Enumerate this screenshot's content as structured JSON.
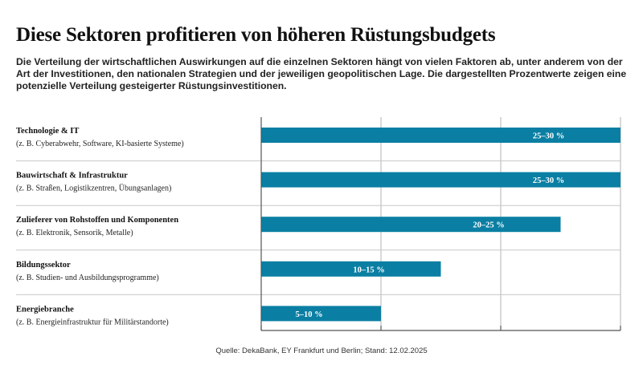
{
  "header": {
    "title": "Diese Sektoren profitieren von höheren Rüstungsbudgets",
    "subtitle": "Die Verteilung der wirtschaftlichen Auswirkungen auf die einzelnen Sektoren hängt von vielen Faktoren ab, unter anderem von der Art der Investitionen, den nationalen Strategien und der jeweiligen geopolitischen Lage. Die dargestellten Prozentwerte zeigen eine potenzielle Verteilung gesteigerter Rüstungsinvestitionen."
  },
  "colors": {
    "bar": "#0a7fa3",
    "grid": "#b3b3b3",
    "axis": "#555555",
    "separator": "#c8c8c8"
  },
  "chart_data": {
    "type": "bar",
    "orientation": "horizontal",
    "unit": "%",
    "xlim": [
      0,
      30
    ],
    "grid": true,
    "categories": [
      {
        "name": "Technologie & IT",
        "examples": "(z. B. Cyberabwehr, Software, KI-basierte Systeme)",
        "low": 25,
        "high": 30,
        "label": "25–30 %"
      },
      {
        "name": "Bauwirtschaft & Infrastruktur",
        "examples": "(z. B. Straßen, Logistikzentren, Übungsanlagen)",
        "low": 25,
        "high": 30,
        "label": "25–30 %"
      },
      {
        "name": "Zulieferer von Rohstoffen und Komponenten",
        "examples": "(z. B. Elektronik, Sensorik, Metalle)",
        "low": 20,
        "high": 25,
        "label": "20–25 %"
      },
      {
        "name": "Bildungssektor",
        "examples": "(z. B. Studien- und Ausbildungsprogramme)",
        "low": 10,
        "high": 15,
        "label": "10–15 %"
      },
      {
        "name": "Energiebranche",
        "examples": "(z. B. Energieinfrastruktur für Militärstandorte)",
        "low": 5,
        "high": 10,
        "label": "5–10 %"
      }
    ]
  },
  "footer": {
    "source": "Quelle: DekaBank, EY Frankfurt und Berlin; Stand: 12.02.2025"
  }
}
